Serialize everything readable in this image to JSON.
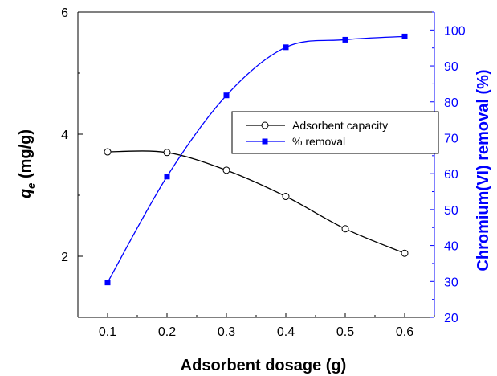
{
  "chart_data": {
    "type": "line",
    "x": [
      0.1,
      0.2,
      0.3,
      0.4,
      0.5,
      0.6
    ],
    "xlabel": "Adsorbent dosage (g)",
    "xlim": [
      0.05,
      0.65
    ],
    "xticks": [
      "0.1",
      "0.2",
      "0.3",
      "0.4",
      "0.5",
      "0.6"
    ],
    "y_left": {
      "label_symbol": "q",
      "label_subscript": "e",
      "label_unit": " (mg/g)",
      "lim": [
        1,
        6
      ],
      "ticks": [
        2,
        4,
        6
      ],
      "tick_labels": [
        "2",
        "4",
        "6"
      ],
      "color": "#000000"
    },
    "y_right": {
      "label": "Chromium(VI) removal (%)",
      "lim": [
        20,
        105
      ],
      "ticks": [
        20,
        30,
        40,
        50,
        60,
        70,
        80,
        90,
        100
      ],
      "tick_labels": [
        "20",
        "30",
        "40",
        "50",
        "60",
        "70",
        "80",
        "90",
        "100"
      ],
      "color": "#0000ff"
    },
    "series": [
      {
        "name": "Adsorbent capacity",
        "axis": "left",
        "values": [
          3.71,
          3.7,
          3.41,
          2.98,
          2.45,
          2.05
        ],
        "color": "#000000",
        "marker": "open-circle"
      },
      {
        "name": "% removal",
        "axis": "right",
        "values": [
          29.7,
          59.2,
          81.8,
          95.2,
          97.3,
          98.2
        ],
        "color": "#0000ff",
        "marker": "filled-square"
      }
    ],
    "grid": false,
    "legend_position": "upper-right"
  }
}
